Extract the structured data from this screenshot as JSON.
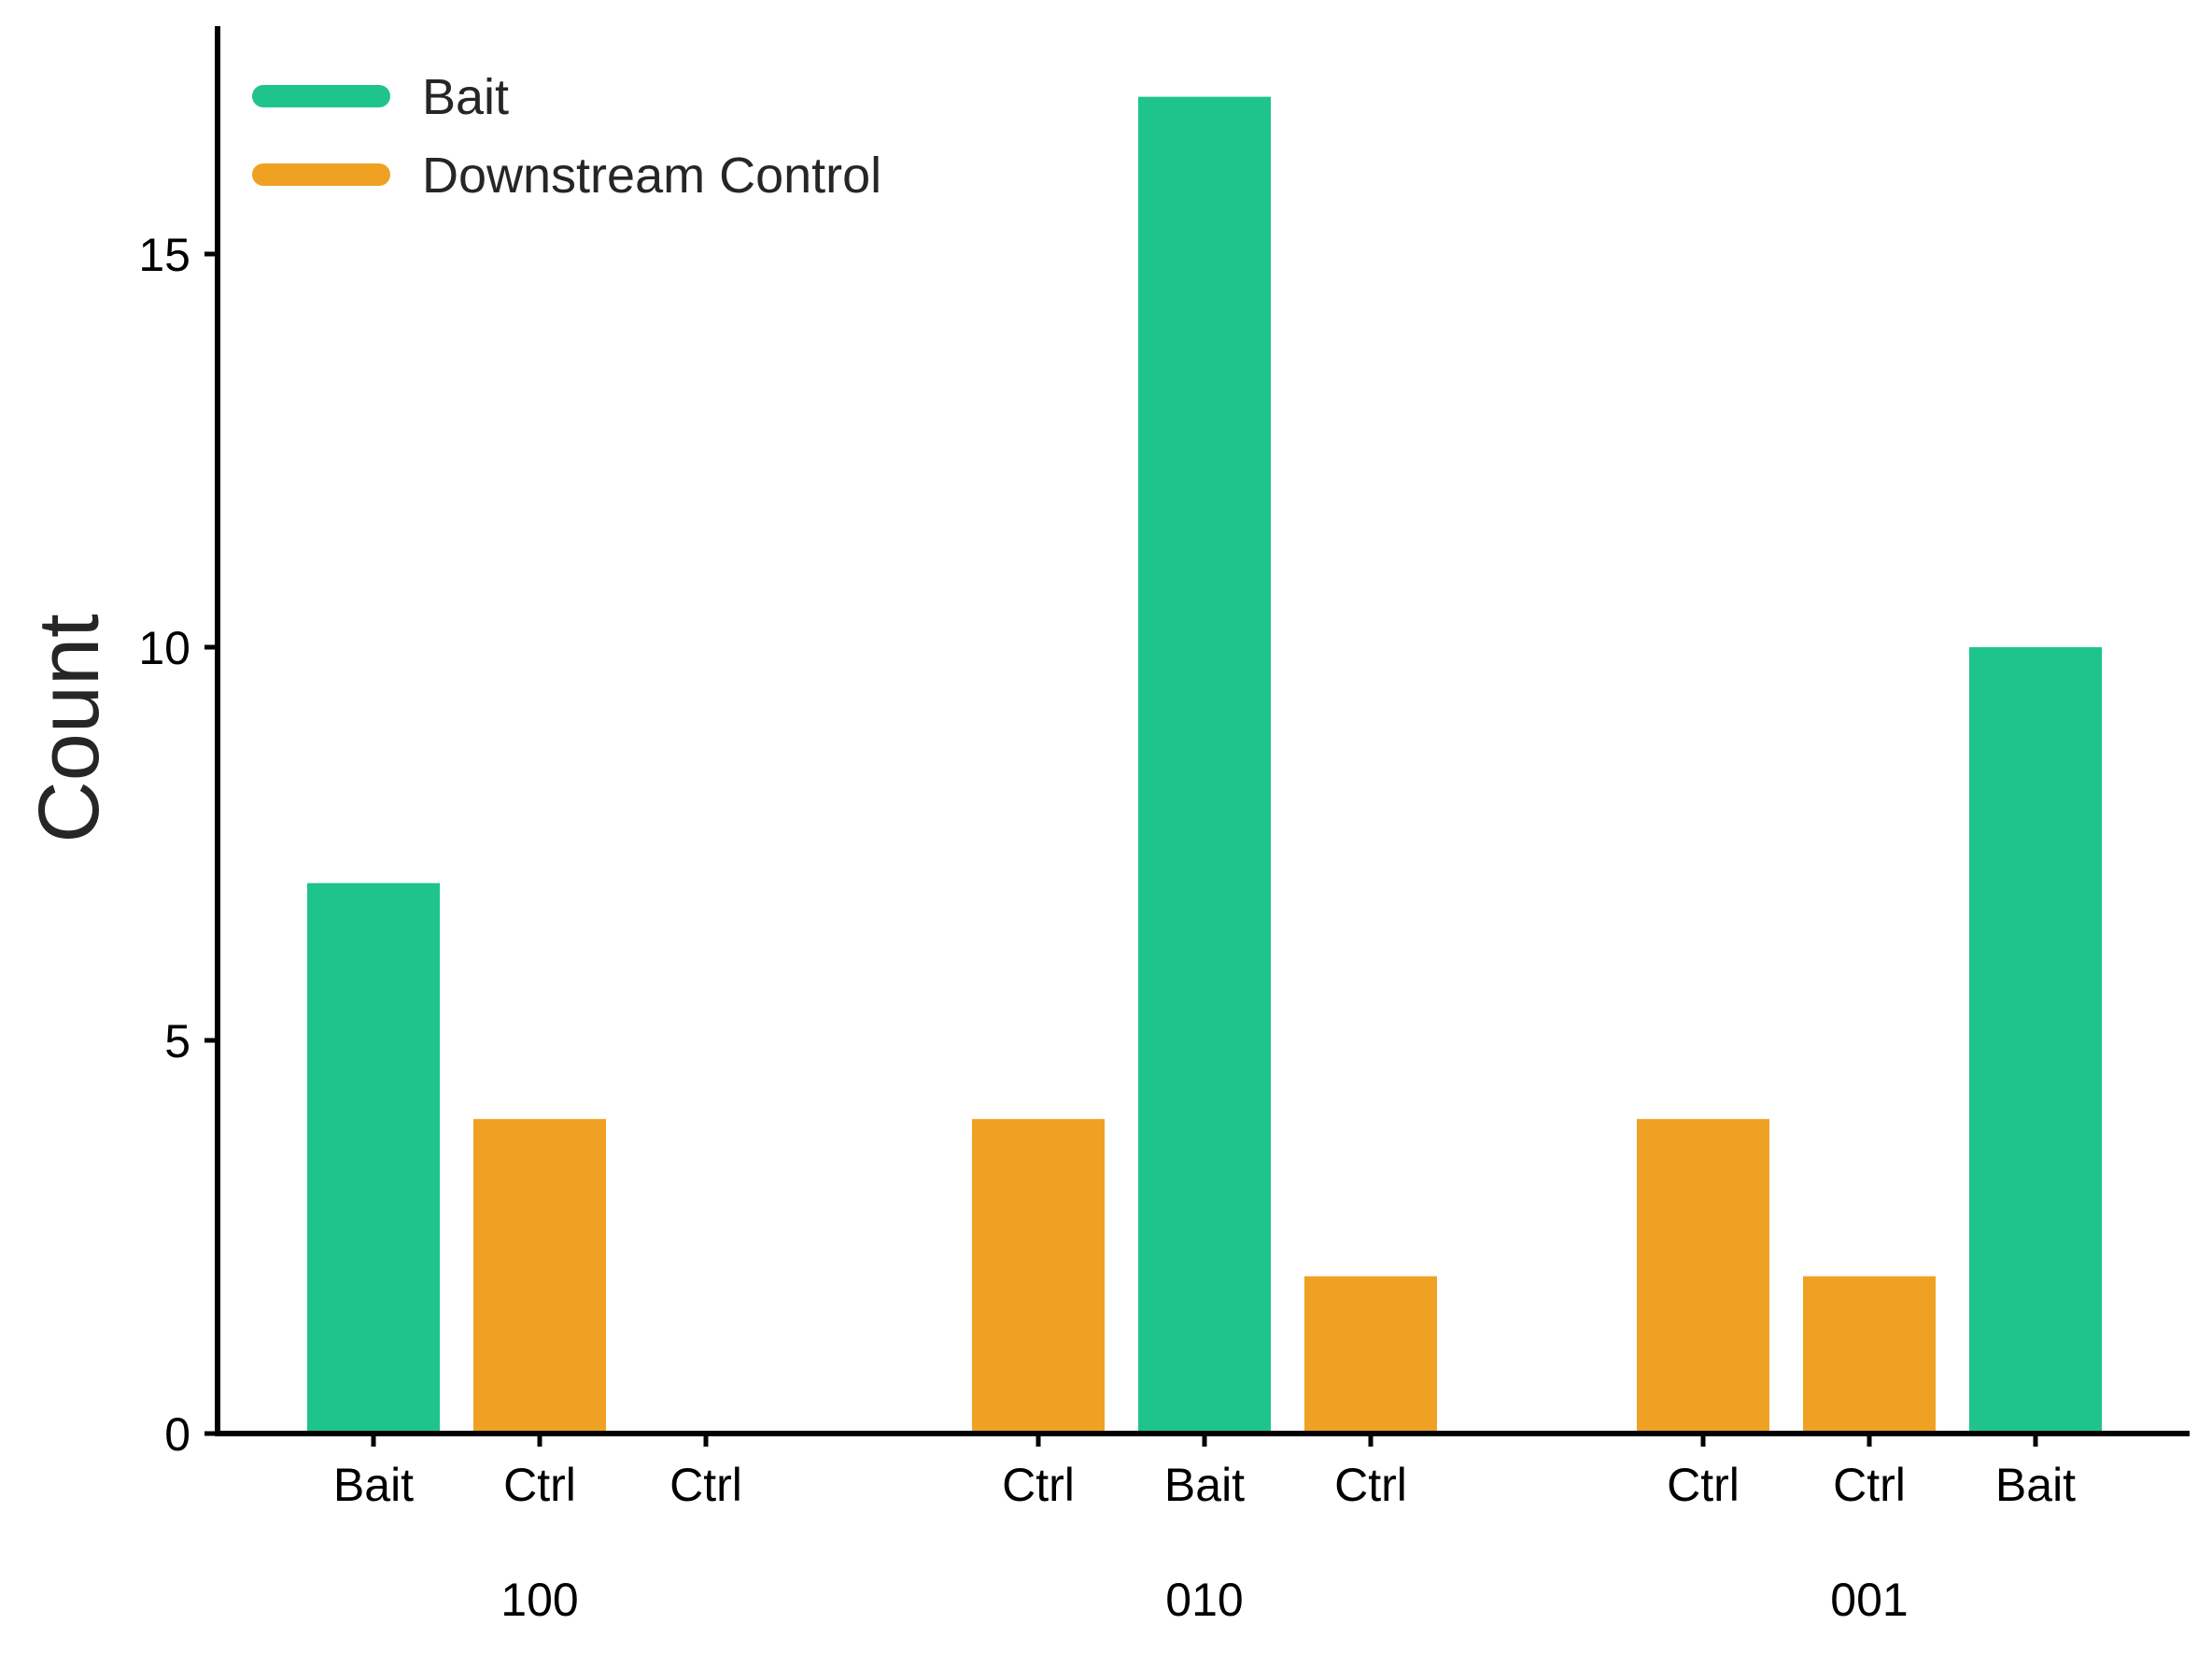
{
  "chart_data": {
    "type": "bar",
    "title": "",
    "xlabel": "",
    "ylabel": "Count",
    "ylim": [
      0,
      17.6
    ],
    "yticks": [
      0,
      5,
      10,
      15
    ],
    "grid": false,
    "legend": {
      "placement": "top-left",
      "entries": [
        {
          "label": "Bait",
          "color": "#1fc48c"
        },
        {
          "label": "Downstream Control",
          "color": "#efa124"
        }
      ]
    },
    "colors": {
      "Bait": "#1fc48c",
      "Ctrl": "#efa124"
    },
    "groups": [
      {
        "label": "100",
        "bars": [
          {
            "label": "Bait",
            "kind": "Bait",
            "value": 7
          },
          {
            "label": "Ctrl",
            "kind": "Ctrl",
            "value": 4
          },
          {
            "label": "Ctrl",
            "kind": "Ctrl",
            "value": 0
          }
        ]
      },
      {
        "label": "010",
        "bars": [
          {
            "label": "Ctrl",
            "kind": "Ctrl",
            "value": 4
          },
          {
            "label": "Bait",
            "kind": "Bait",
            "value": 17
          },
          {
            "label": "Ctrl",
            "kind": "Ctrl",
            "value": 2
          }
        ]
      },
      {
        "label": "001",
        "bars": [
          {
            "label": "Ctrl",
            "kind": "Ctrl",
            "value": 4
          },
          {
            "label": "Ctrl",
            "kind": "Ctrl",
            "value": 2
          },
          {
            "label": "Bait",
            "kind": "Bait",
            "value": 10
          }
        ]
      }
    ]
  }
}
